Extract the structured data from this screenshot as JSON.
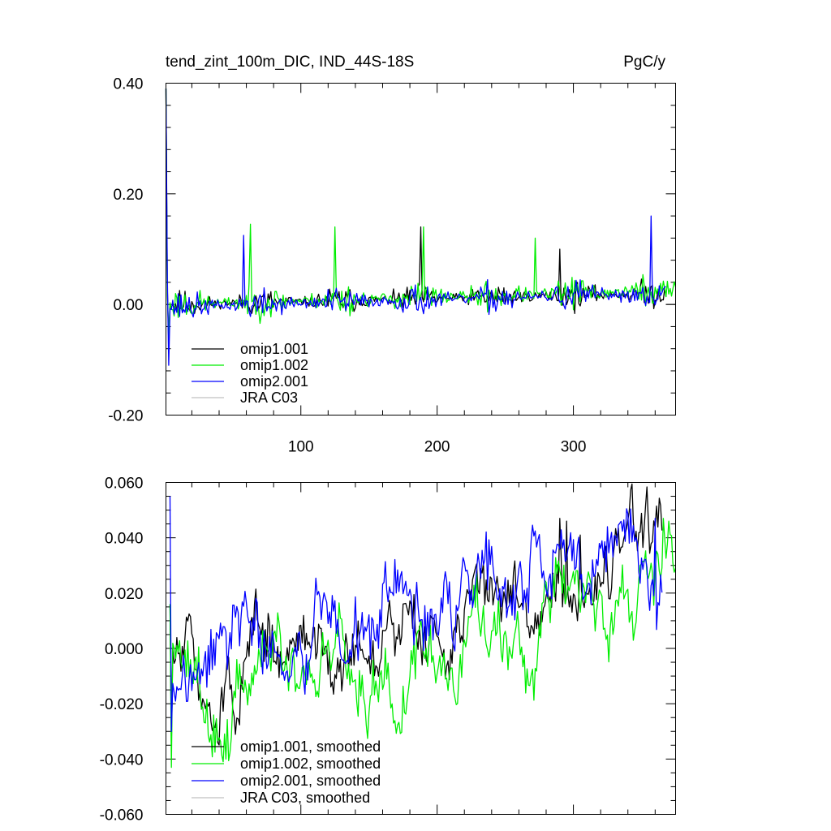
{
  "chart_data": [
    {
      "type": "line",
      "title_left": "tend_zint_100m_DIC, IND_44S-18S",
      "title_right": "PgC/y",
      "xlim": [
        1,
        375
      ],
      "ylim": [
        -0.2,
        0.4
      ],
      "yticks": [
        -0.2,
        0.0,
        0.2,
        0.4
      ],
      "ytick_labels": [
        "-0.20",
        "0.00",
        "0.20",
        "0.40"
      ],
      "yminor_step": 0.04,
      "xticks": [
        100,
        200,
        300
      ],
      "xtick_labels": [
        "100",
        "200",
        "300"
      ],
      "xminor_step": 20,
      "show_x_labels": true,
      "zero_line": true,
      "legend_position": "bottom-left",
      "series": [
        {
          "name": "omip1.001",
          "color": "#000000",
          "x_start": 1,
          "x_end": 368,
          "kind": "monthly",
          "level_start": 0.0,
          "level_end": 0.02,
          "noise": 0.038,
          "seed": 11,
          "spike": [
            0.39,
            0.03,
            -0.07
          ],
          "bumps": [
            [
              188,
              0.14
            ],
            [
              290,
              0.1
            ]
          ]
        },
        {
          "name": "omip1.002",
          "color": "#00ee00",
          "x_start": 1,
          "x_end": 375,
          "kind": "monthly",
          "level_start": 0.0,
          "level_end": 0.025,
          "noise": 0.045,
          "seed": 23,
          "spike": [
            0.39,
            0.02,
            -0.06
          ],
          "bumps": [
            [
              63,
              0.145
            ],
            [
              125,
              0.14
            ],
            [
              190,
              0.14
            ],
            [
              272,
              0.12
            ]
          ]
        },
        {
          "name": "omip2.001",
          "color": "#0000ff",
          "x_start": 1,
          "x_end": 368,
          "kind": "monthly",
          "level_start": -0.005,
          "level_end": 0.02,
          "noise": 0.042,
          "seed": 37,
          "spike": [
            0.39,
            0.05,
            -0.11
          ],
          "bumps": [
            [
              58,
              0.125
            ],
            [
              357,
              0.16
            ]
          ]
        },
        {
          "name": "JRA C03",
          "color": "#c0c0c0",
          "x_start": 1,
          "x_end": 1,
          "kind": "empty",
          "level_start": 0,
          "level_end": 0,
          "noise": 0,
          "seed": 1,
          "spike": [],
          "bumps": []
        }
      ]
    },
    {
      "type": "line",
      "title_left": "",
      "title_right": "",
      "xlim": [
        1,
        375
      ],
      "ylim": [
        -0.06,
        0.06
      ],
      "yticks": [
        -0.06,
        -0.04,
        -0.02,
        0.0,
        0.02,
        0.04,
        0.06
      ],
      "ytick_labels": [
        "-0.060",
        "-0.040",
        "-0.020",
        "0.000",
        "0.020",
        "0.040",
        "0.060"
      ],
      "yminor_step": 0.005,
      "xticks": [
        100,
        200,
        300
      ],
      "xtick_labels": [
        "",
        "",
        ""
      ],
      "xminor_step": 20,
      "show_x_labels": false,
      "zero_line": false,
      "legend_position": "bottom-left",
      "series": [
        {
          "name": "omip1.001, smoothed",
          "color": "#000000",
          "x_start": 4,
          "x_end": 365,
          "kind": "smooth",
          "level_start": -0.012,
          "level_end": 0.03,
          "noise": 0.012,
          "seed": 51,
          "spike": [
            0.016,
            -0.035
          ],
          "bumps": [
            [
              290,
              0.047
            ],
            [
              295,
              0.046
            ],
            [
              305,
              0.041
            ]
          ]
        },
        {
          "name": "omip1.002, smoothed",
          "color": "#00ee00",
          "x_start": 4,
          "x_end": 375,
          "kind": "smooth",
          "level_start": -0.014,
          "level_end": 0.025,
          "noise": 0.012,
          "seed": 63,
          "spike": [
            0.016,
            -0.043
          ],
          "bumps": [
            [
              366,
              0.047
            ],
            [
              370,
              0.046
            ],
            [
              375,
              0.029
            ]
          ]
        },
        {
          "name": "omip2.001, smoothed",
          "color": "#0000ff",
          "x_start": 4,
          "x_end": 365,
          "kind": "smooth",
          "level_start": -0.012,
          "level_end": 0.03,
          "noise": 0.013,
          "seed": 77,
          "spike": [
            0.055,
            -0.03
          ],
          "bumps": [
            [
              360,
              0.047
            ],
            [
              325,
              0.044
            ]
          ]
        },
        {
          "name": "JRA C03, smoothed",
          "color": "#c0c0c0",
          "x_start": 1,
          "x_end": 1,
          "kind": "empty",
          "level_start": 0,
          "level_end": 0,
          "noise": 0,
          "seed": 1,
          "spike": [],
          "bumps": []
        }
      ]
    }
  ]
}
